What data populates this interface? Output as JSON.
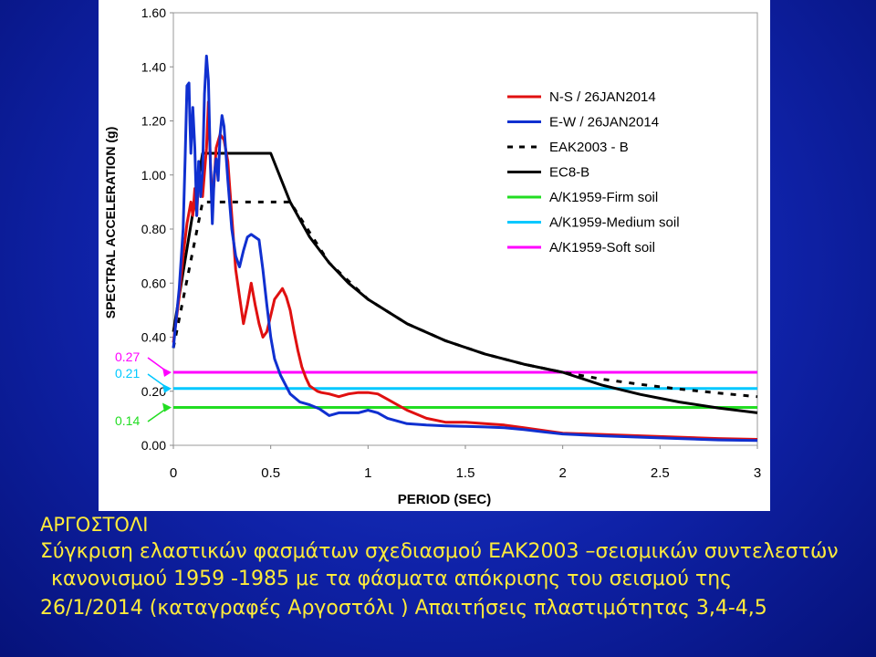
{
  "slide": {
    "title": "ΑΡΓΟΣΤΟΛΙ",
    "caption_lines": [
      "Σύγκριση ελαστικών φασμάτων σχεδιασμού ΕΑΚ2003 –σεισμικών συντελεστών",
      "κανονισμού 1959 -1985 με τα φάσματα απόκρισης του σεισμού της",
      "26/1/2014 (καταγραφές Αργοστόλι ) Απαιτήσεις πλαστιμότητας 3,4-4,5"
    ]
  },
  "chart_data": {
    "type": "line",
    "title": "",
    "xlabel": "PERIOD (SEC)",
    "ylabel": "SPECTRAL ACCELERATION (g)",
    "xlim": [
      0,
      3
    ],
    "ylim": [
      0,
      1.6
    ],
    "x_ticks": [
      "0",
      "0.5",
      "1",
      "1.5",
      "2",
      "2.5",
      "3"
    ],
    "x_tick_values": [
      0,
      0.5,
      1,
      1.5,
      2,
      2.5,
      3
    ],
    "y_ticks": [
      "0.00",
      "0.20",
      "0.40",
      "0.60",
      "0.80",
      "1.00",
      "1.20",
      "1.40",
      "1.60"
    ],
    "y_tick_values": [
      0,
      0.2,
      0.4,
      0.6,
      0.8,
      1.0,
      1.2,
      1.4,
      1.6
    ],
    "grid": false,
    "legend_position": "top-right",
    "annotations": [
      {
        "text": "0.27",
        "y": 0.27,
        "color": "#ff00ff"
      },
      {
        "text": "0.21",
        "y": 0.21,
        "color": "#00c8ff"
      },
      {
        "text": "0.14",
        "y": 0.14,
        "color": "#22dd22"
      }
    ],
    "series": [
      {
        "name": "N-S / 26JAN2014",
        "color": "#e01010",
        "style": "solid",
        "x": [
          0,
          0.03,
          0.05,
          0.07,
          0.09,
          0.1,
          0.11,
          0.12,
          0.13,
          0.15,
          0.17,
          0.18,
          0.19,
          0.2,
          0.21,
          0.22,
          0.24,
          0.26,
          0.28,
          0.3,
          0.32,
          0.34,
          0.36,
          0.38,
          0.4,
          0.42,
          0.44,
          0.46,
          0.48,
          0.5,
          0.52,
          0.54,
          0.56,
          0.58,
          0.6,
          0.62,
          0.64,
          0.66,
          0.68,
          0.7,
          0.72,
          0.74,
          0.76,
          0.8,
          0.85,
          0.9,
          0.95,
          1.0,
          1.05,
          1.1,
          1.2,
          1.3,
          1.4,
          1.5,
          1.6,
          1.7,
          1.8,
          1.9,
          2.0,
          2.2,
          2.4,
          2.6,
          2.8,
          3.0
        ],
        "y": [
          0.38,
          0.55,
          0.7,
          0.82,
          0.9,
          0.85,
          0.95,
          0.85,
          1.0,
          0.92,
          1.1,
          1.27,
          1.05,
          0.9,
          0.98,
          1.1,
          1.15,
          1.13,
          1.05,
          0.85,
          0.65,
          0.55,
          0.45,
          0.52,
          0.6,
          0.52,
          0.45,
          0.4,
          0.42,
          0.48,
          0.54,
          0.56,
          0.58,
          0.55,
          0.5,
          0.42,
          0.35,
          0.29,
          0.25,
          0.22,
          0.21,
          0.2,
          0.195,
          0.19,
          0.18,
          0.19,
          0.195,
          0.195,
          0.19,
          0.17,
          0.13,
          0.1,
          0.085,
          0.085,
          0.08,
          0.075,
          0.065,
          0.055,
          0.045,
          0.04,
          0.035,
          0.03,
          0.025,
          0.022
        ]
      },
      {
        "name": "E-W / 26JAN2014",
        "color": "#1030d0",
        "style": "solid",
        "x": [
          0,
          0.03,
          0.05,
          0.06,
          0.07,
          0.08,
          0.085,
          0.09,
          0.1,
          0.11,
          0.12,
          0.13,
          0.14,
          0.15,
          0.16,
          0.17,
          0.18,
          0.19,
          0.2,
          0.21,
          0.22,
          0.23,
          0.24,
          0.25,
          0.26,
          0.28,
          0.3,
          0.32,
          0.34,
          0.36,
          0.38,
          0.4,
          0.42,
          0.44,
          0.46,
          0.48,
          0.5,
          0.52,
          0.55,
          0.6,
          0.65,
          0.7,
          0.75,
          0.8,
          0.85,
          0.9,
          0.95,
          1.0,
          1.05,
          1.1,
          1.2,
          1.3,
          1.4,
          1.5,
          1.6,
          1.7,
          1.8,
          1.9,
          2.0,
          2.2,
          2.4,
          2.6,
          2.8,
          3.0
        ],
        "y": [
          0.36,
          0.58,
          0.8,
          1.05,
          1.33,
          1.34,
          1.2,
          1.08,
          1.25,
          1.1,
          0.85,
          1.05,
          0.92,
          1.02,
          1.3,
          1.44,
          1.35,
          1.05,
          0.82,
          1.0,
          1.06,
          0.98,
          1.15,
          1.22,
          1.18,
          0.98,
          0.8,
          0.7,
          0.66,
          0.72,
          0.77,
          0.78,
          0.77,
          0.76,
          0.65,
          0.52,
          0.4,
          0.32,
          0.26,
          0.19,
          0.16,
          0.15,
          0.135,
          0.11,
          0.12,
          0.12,
          0.12,
          0.13,
          0.12,
          0.1,
          0.08,
          0.075,
          0.072,
          0.07,
          0.068,
          0.065,
          0.058,
          0.05,
          0.042,
          0.035,
          0.03,
          0.025,
          0.02,
          0.018
        ]
      },
      {
        "name": "ΕΑΚ2003 - Β",
        "color": "#000000",
        "style": "dotted",
        "x": [
          0,
          0.15,
          0.2,
          0.4,
          0.6,
          0.8,
          1.0,
          1.2,
          1.4,
          1.6,
          1.8,
          2.0,
          2.2,
          2.4,
          2.6,
          2.8,
          3.0
        ],
        "y": [
          0.36,
          0.9,
          0.9,
          0.9,
          0.9,
          0.675,
          0.54,
          0.45,
          0.386,
          0.338,
          0.3,
          0.27,
          0.245,
          0.225,
          0.208,
          0.193,
          0.18
        ]
      },
      {
        "name": "EC8-B",
        "color": "#000000",
        "style": "solid",
        "x": [
          0,
          0.15,
          0.2,
          0.3,
          0.4,
          0.5,
          0.6,
          0.7,
          0.8,
          0.9,
          1.0,
          1.2,
          1.4,
          1.6,
          1.8,
          2.0,
          2.2,
          2.4,
          2.6,
          2.8,
          3.0
        ],
        "y": [
          0.42,
          1.08,
          1.08,
          1.08,
          1.08,
          1.08,
          0.9,
          0.771,
          0.675,
          0.6,
          0.54,
          0.45,
          0.386,
          0.338,
          0.3,
          0.27,
          0.223,
          0.188,
          0.16,
          0.138,
          0.12
        ]
      },
      {
        "name": "Α/Κ1959-Firm soil",
        "color": "#22dd22",
        "style": "solid",
        "x": [
          0,
          3.0
        ],
        "y": [
          0.14,
          0.14
        ]
      },
      {
        "name": "Α/Κ1959-Medium soil",
        "color": "#00c8ff",
        "style": "solid",
        "x": [
          0,
          3.0
        ],
        "y": [
          0.21,
          0.21
        ]
      },
      {
        "name": "Α/Κ1959-Soft soil",
        "color": "#ff00ff",
        "style": "solid",
        "x": [
          0,
          3.0
        ],
        "y": [
          0.27,
          0.27
        ]
      }
    ]
  }
}
